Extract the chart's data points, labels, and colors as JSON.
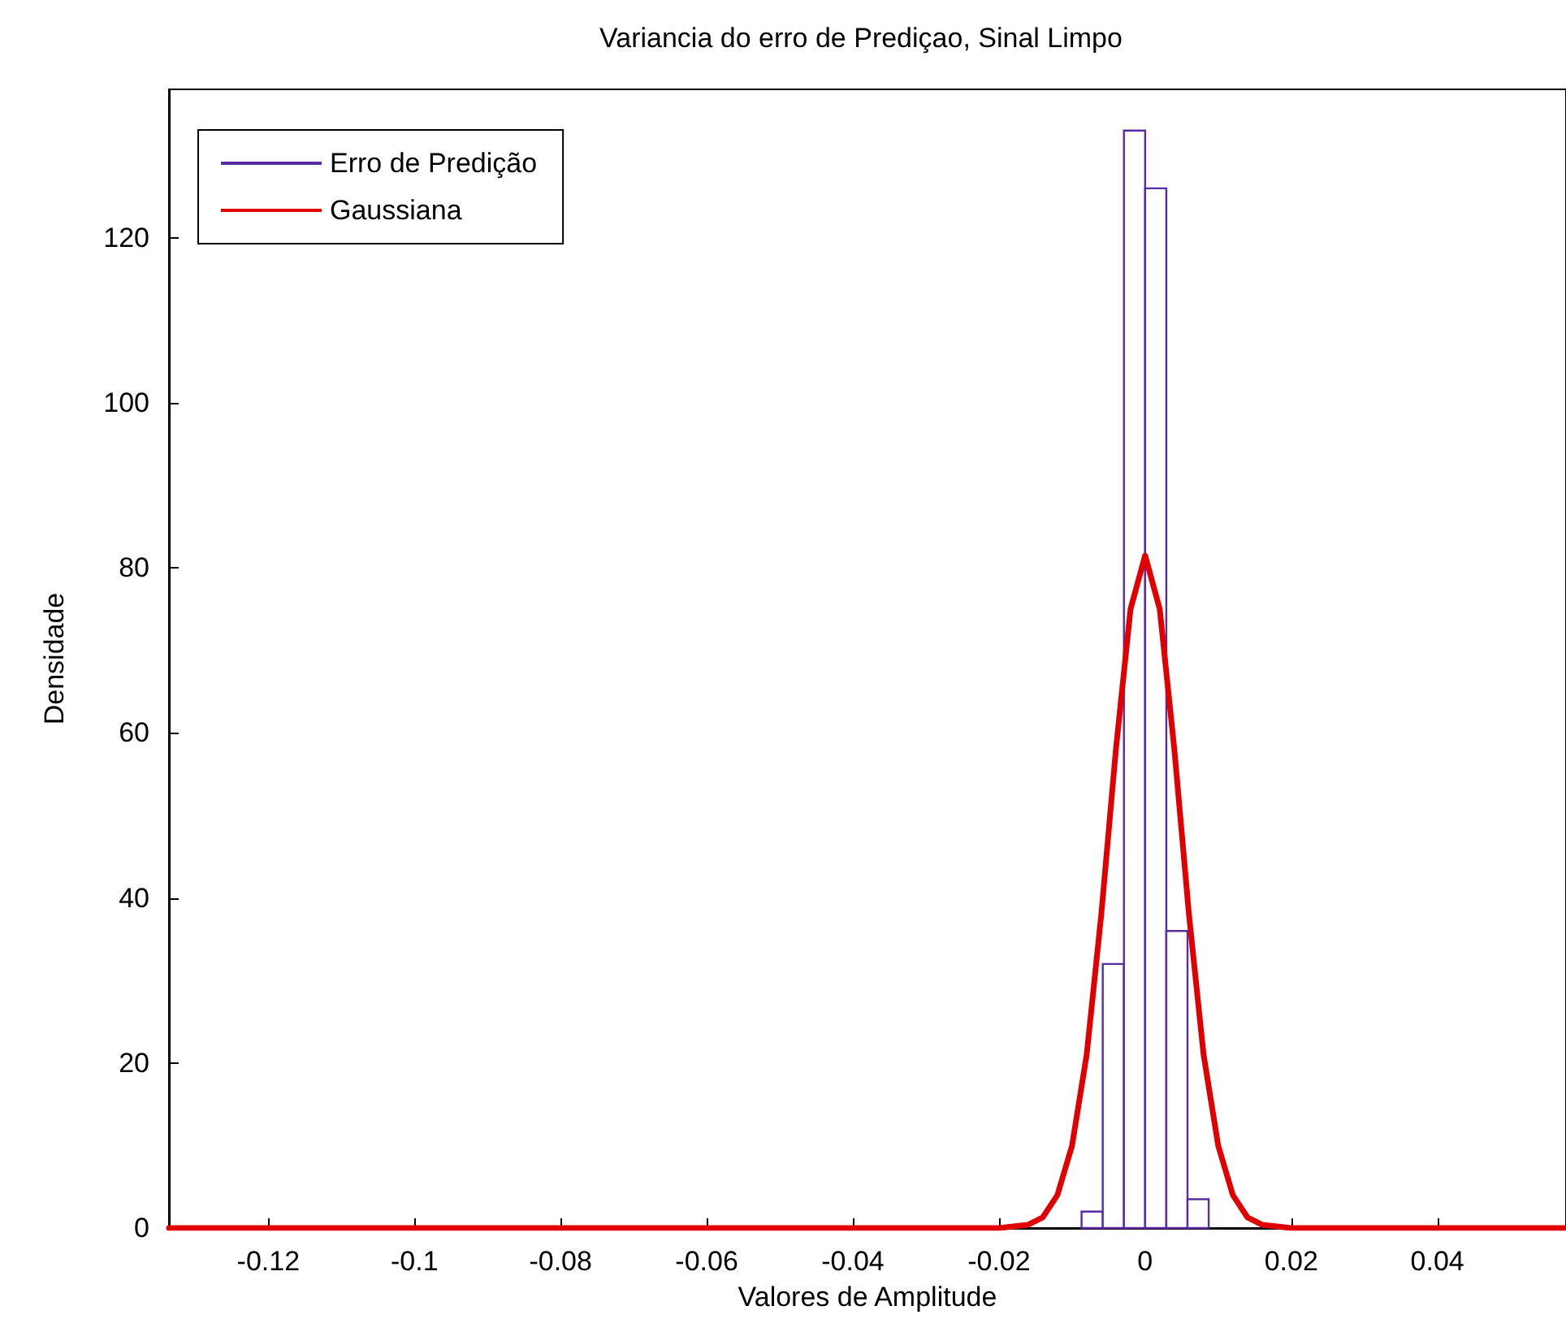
{
  "chart_data": {
    "type": "histogram",
    "title": "Variancia do erro de Prediçao, Sinal Limpo",
    "xlabel": "Valores de Amplitude",
    "ylabel": "Densidade",
    "series": [
      {
        "name": "Erro de Predição",
        "color": "#5a2ca0",
        "bins": [
          -0.0087,
          -0.0058,
          -0.0029,
          0.0,
          0.0029,
          0.0058,
          0.0087
        ],
        "values": [
          2,
          32,
          133,
          126,
          36,
          3.5
        ]
      },
      {
        "name": "Gaussiana",
        "type": "line",
        "color": "#e00000",
        "x": [
          -0.1336,
          -0.04,
          -0.02,
          -0.016,
          -0.014,
          -0.012,
          -0.01,
          -0.008,
          -0.006,
          -0.004,
          -0.002,
          0,
          0.002,
          0.004,
          0.006,
          0.008,
          0.01,
          0.012,
          0.014,
          0.016,
          0.02,
          0.04,
          0.0576
        ],
        "values": [
          0,
          0,
          0,
          0.4,
          1.3,
          4,
          10,
          21,
          38,
          58,
          75,
          81.5,
          75,
          58,
          38,
          21,
          10,
          4,
          1.3,
          0.4,
          0,
          0,
          0
        ]
      }
    ],
    "xlim": [
      -0.1336,
      0.0576
    ],
    "xticks": [
      -0.12,
      -0.1,
      -0.08,
      -0.06,
      -0.04,
      -0.02,
      0,
      0.02,
      0.04
    ],
    "ylim": [
      0,
      138
    ],
    "yticks": [
      0,
      20,
      40,
      60,
      80,
      100,
      120
    ],
    "legend": "top left",
    "grid": false,
    "marker": "none",
    "line_style": "solid"
  }
}
